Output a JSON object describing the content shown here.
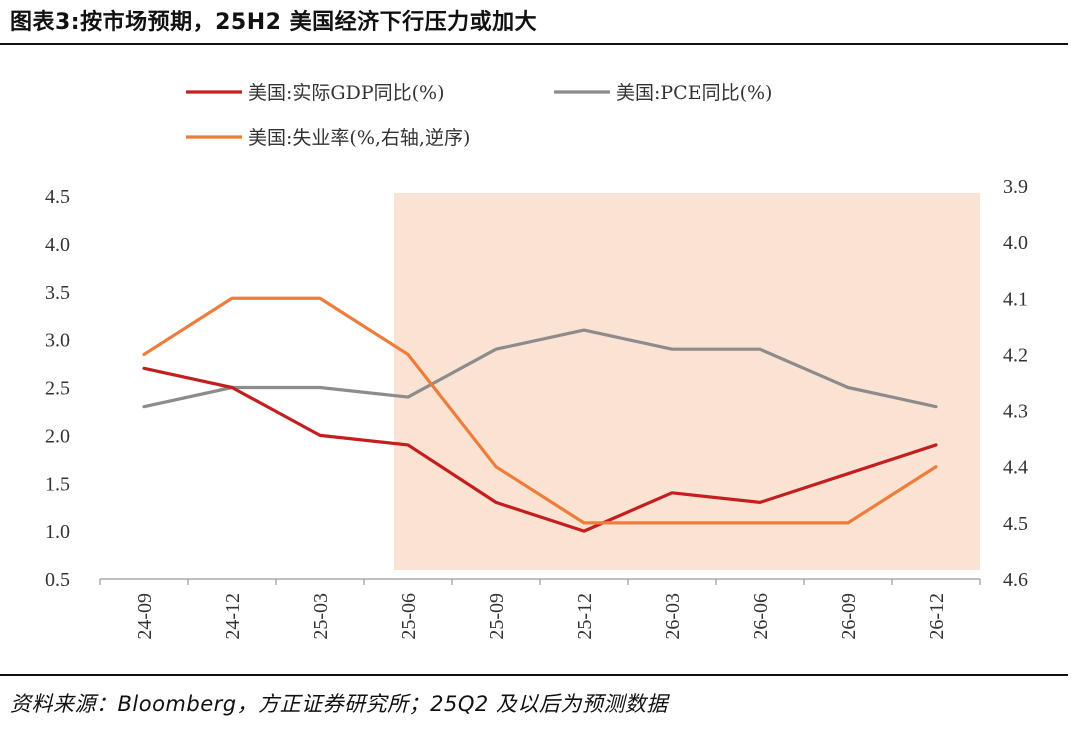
{
  "title": "图表3:按市场预期，25H2 美国经济下行压力或加大",
  "source": "资料来源：Bloomberg，方正证券研究所；25Q2 及以后为预测数据",
  "chart_data": {
    "type": "line",
    "categories": [
      "24-09",
      "24-12",
      "25-03",
      "25-06",
      "25-09",
      "25-12",
      "26-03",
      "26-06",
      "26-09",
      "26-12"
    ],
    "left_axis": {
      "ylim": [
        0.5,
        4.5
      ],
      "ticks": [
        "4.5",
        "4.0",
        "3.5",
        "3.0",
        "2.5",
        "2.0",
        "1.5",
        "1.0",
        "0.5"
      ]
    },
    "right_axis": {
      "ylim": [
        3.9,
        4.6
      ],
      "inverted": true,
      "ticks": [
        "3.9",
        "4.0",
        "4.1",
        "4.2",
        "4.3",
        "4.4",
        "4.5",
        "4.6"
      ]
    },
    "forecast_shade": {
      "from": "25-06",
      "to": "26-12",
      "color": "#fbe3d3"
    },
    "series": [
      {
        "name": "美国:实际GDP同比(%)",
        "axis": "left",
        "color": "#c41e1e",
        "values": [
          2.7,
          2.5,
          2.0,
          1.9,
          1.3,
          1.0,
          1.4,
          1.3,
          1.6,
          1.9
        ]
      },
      {
        "name": "美国:PCE同比(%)",
        "axis": "left",
        "color": "#8c8c8c",
        "values": [
          2.3,
          2.5,
          2.5,
          2.4,
          2.9,
          3.1,
          2.9,
          2.9,
          2.5,
          2.3
        ]
      },
      {
        "name": "美国:失业率(%,右轴,逆序)",
        "axis": "right",
        "color": "#ee7d3b",
        "values": [
          4.2,
          4.1,
          4.1,
          4.2,
          4.4,
          4.5,
          4.5,
          4.5,
          4.5,
          4.4
        ]
      }
    ],
    "legend_position": "top",
    "grid": false
  }
}
